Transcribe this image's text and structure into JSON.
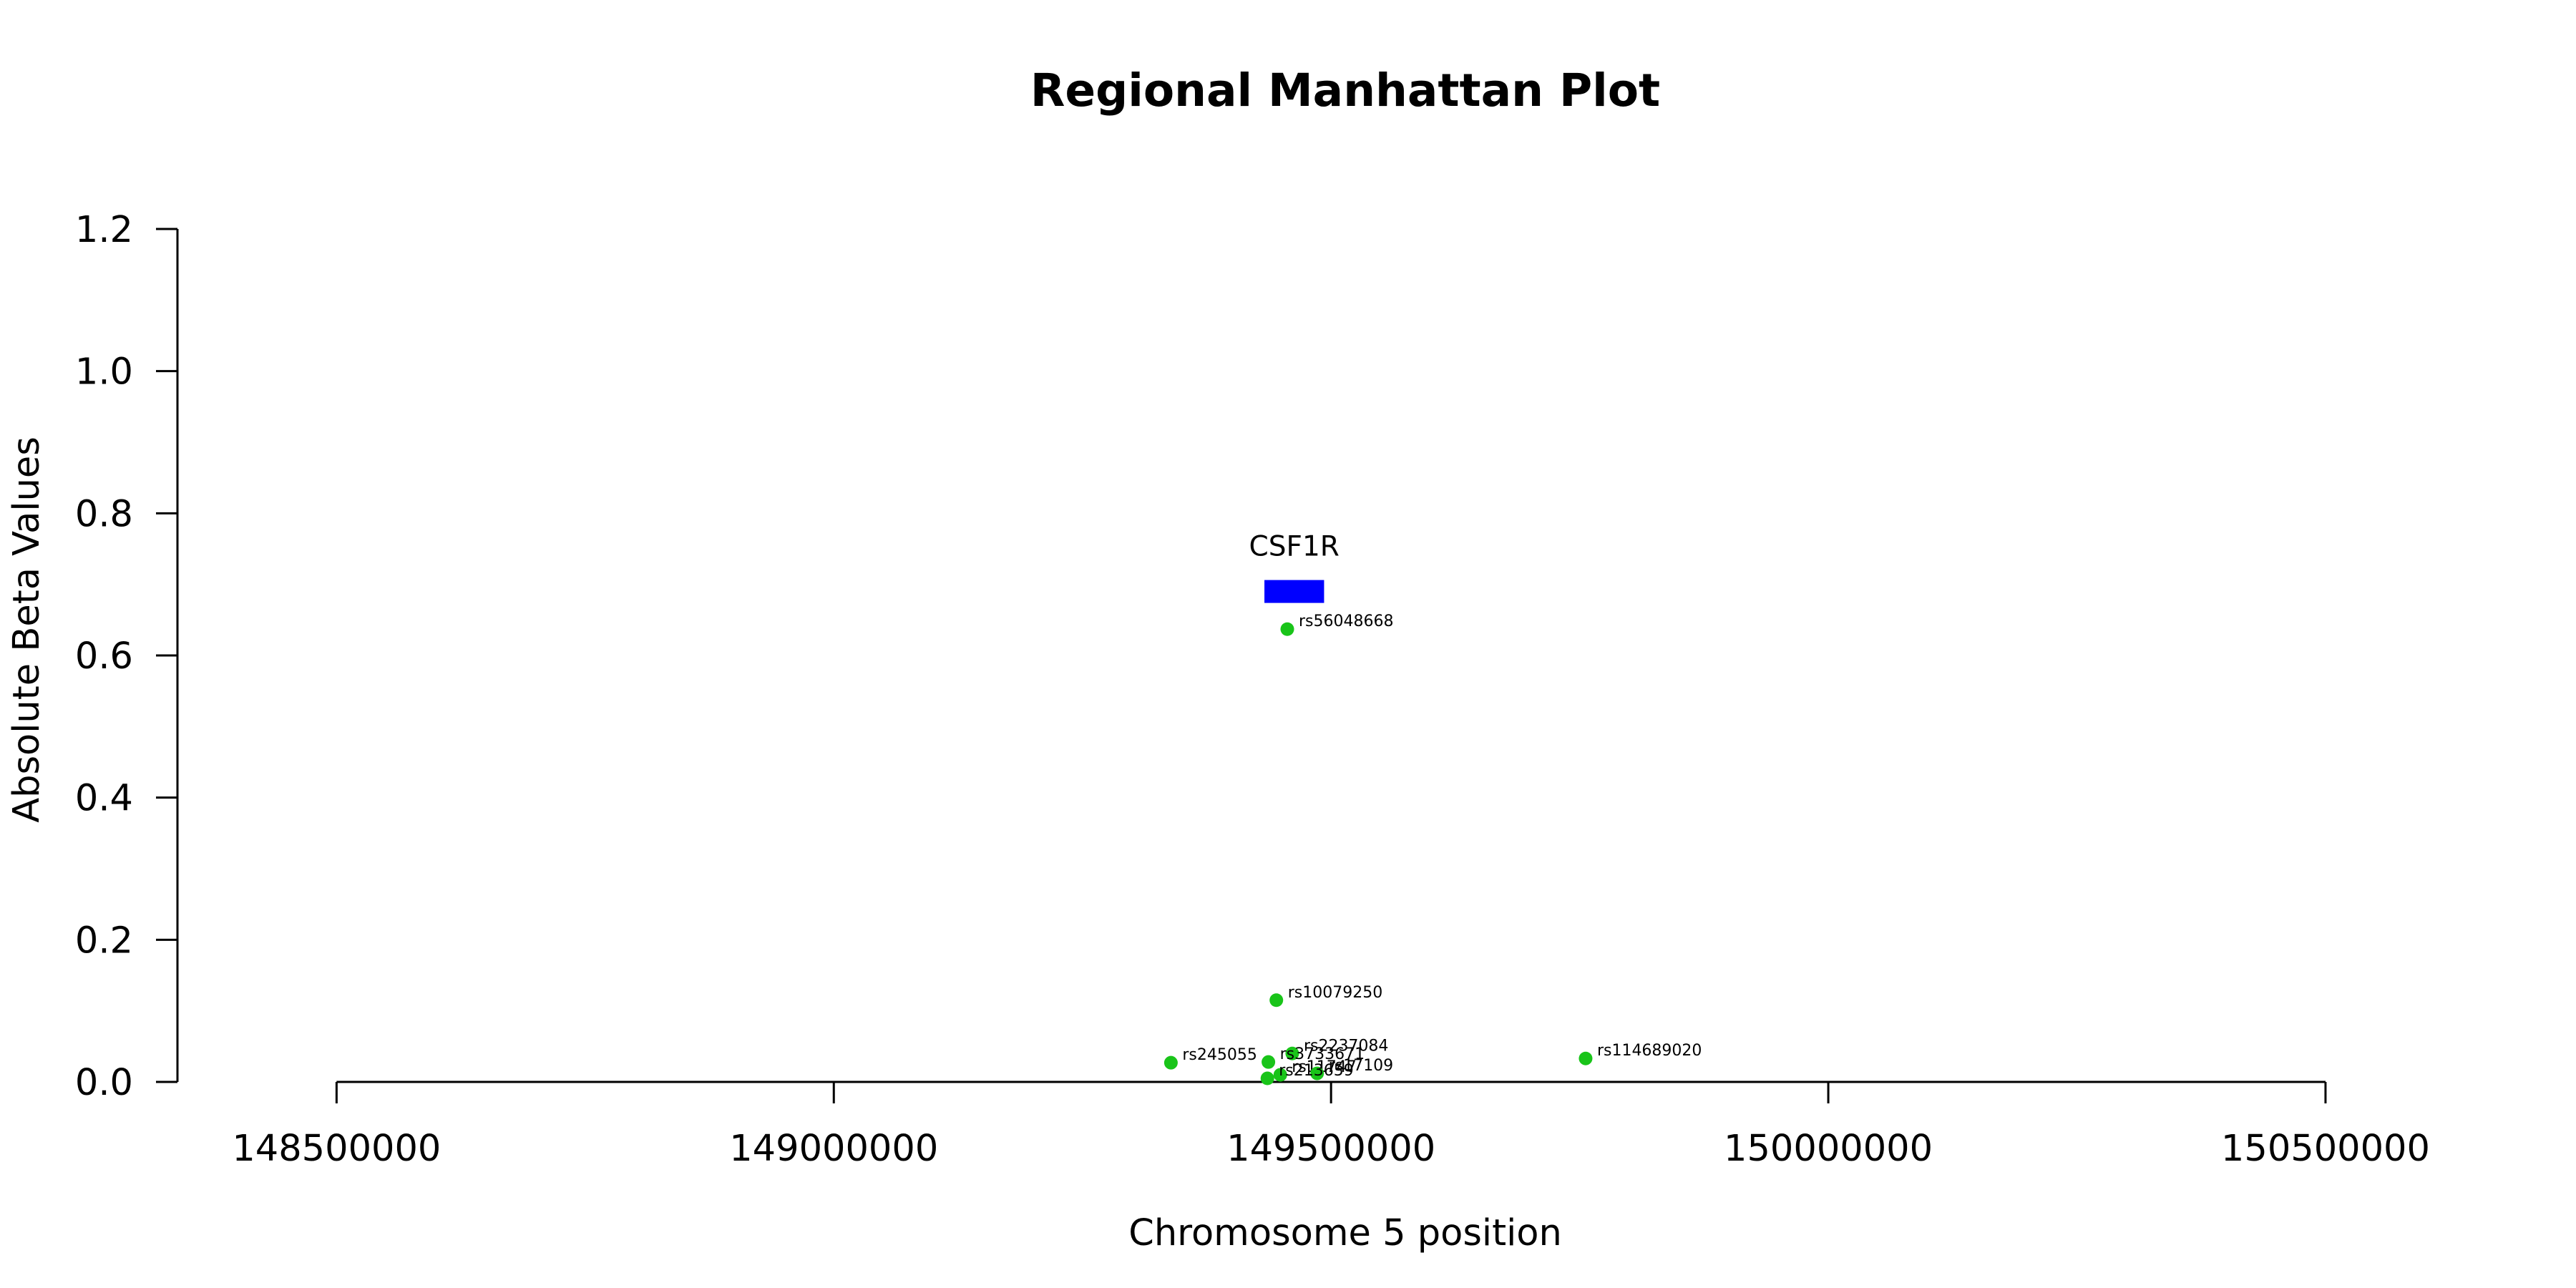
{
  "chart_data": {
    "type": "scatter",
    "title": "Regional Manhattan Plot",
    "xlabel": "Chromosome 5 position",
    "ylabel": "Absolute Beta Values",
    "xlim": [
      148340000,
      150690000
    ],
    "ylim": [
      0,
      1.2
    ],
    "x_ticks": [
      148500000,
      149000000,
      149500000,
      150000000,
      150500000
    ],
    "x_tick_labels": [
      "148500000",
      "149000000",
      "149500000",
      "150000000",
      "150500000"
    ],
    "y_ticks": [
      0,
      0.2,
      0.4,
      0.6,
      0.8,
      1.0,
      1.2
    ],
    "y_tick_labels": [
      "0.0",
      "0.2",
      "0.4",
      "0.6",
      "0.8",
      "1.0",
      "1.2"
    ],
    "point_color": "#19c419",
    "points": [
      {
        "label": "rs56048668",
        "x": 149456000,
        "y": 0.637
      },
      {
        "label": "rs10079250",
        "x": 149445000,
        "y": 0.115
      },
      {
        "label": "rs2237084",
        "x": 149461000,
        "y": 0.04
      },
      {
        "label": "rs3733671",
        "x": 149437000,
        "y": 0.028
      },
      {
        "label": "rs245055",
        "x": 149339000,
        "y": 0.027
      },
      {
        "label": "rs114689020",
        "x": 149756000,
        "y": 0.033
      },
      {
        "label": "rs11747",
        "x": 149449000,
        "y": 0.01
      },
      {
        "label": "rs17109",
        "x": 149486000,
        "y": 0.012
      },
      {
        "label": "rs213659",
        "x": 149436000,
        "y": 0.005
      }
    ],
    "genes": [
      {
        "name": "CSF1R",
        "start": 149433000,
        "end": 149493000,
        "y": 0.69,
        "color": "#0000ff"
      }
    ]
  }
}
